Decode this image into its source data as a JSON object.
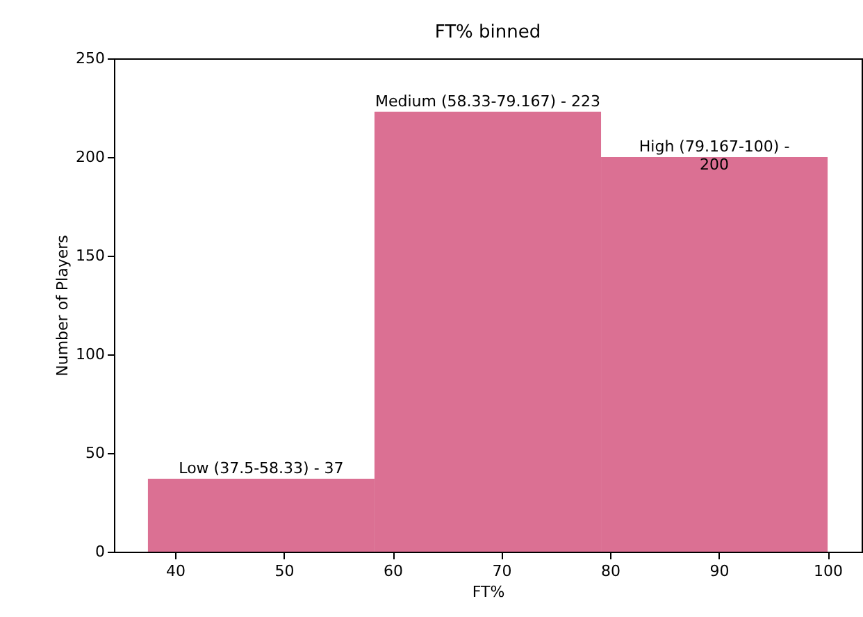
{
  "chart_data": {
    "type": "histogram",
    "title": "FT% binned",
    "xlabel": "FT%",
    "ylabel": "Number of Players",
    "bins": [
      37.5,
      58.33,
      79.167,
      100
    ],
    "values": [
      37,
      223,
      200
    ],
    "color": "#db7093",
    "xlim": [
      34.375,
      103.125
    ],
    "xticks": [
      40,
      50,
      60,
      70,
      80,
      90,
      100
    ],
    "ylim": [
      0,
      250
    ],
    "yticks": [
      0,
      50,
      100,
      150,
      200,
      250
    ],
    "grid": false,
    "annotations": [
      {
        "text": "Low (37.5-58.33) - 37",
        "x": 47.915,
        "y": 37
      },
      {
        "text": "Medium (58.33-79.167) - 223",
        "x": 68.7485,
        "y": 223
      },
      {
        "text": "High (79.167-100) -\n200",
        "x": 89.5835,
        "y": 200
      }
    ]
  }
}
